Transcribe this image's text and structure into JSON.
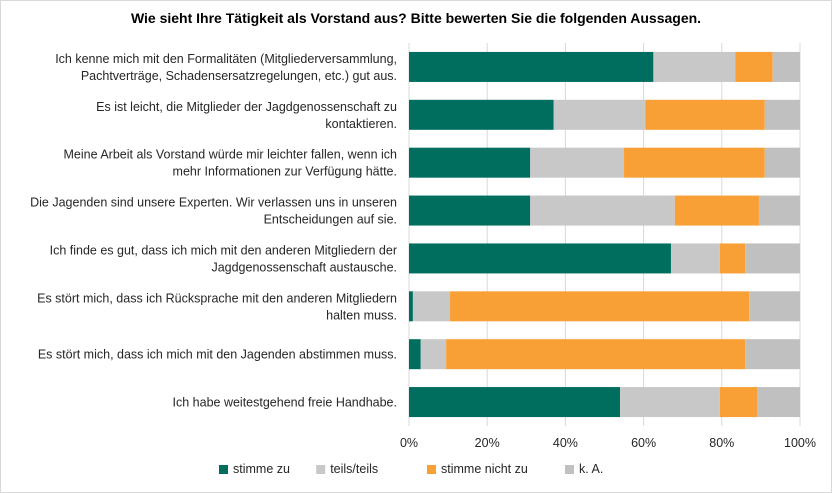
{
  "chart_data": {
    "type": "bar",
    "orientation": "horizontal",
    "stacked": "100%",
    "title": "Wie sieht Ihre Tätigkeit als Vorstand aus? Bitte bewerten Sie die folgenden Aussagen.",
    "categories": [
      [
        "Ich kenne mich mit den Formalitäten (Mitgliederversammlung,",
        "Pachtverträge, Schadensersatzregelungen, etc.) gut aus."
      ],
      [
        "Es ist leicht, die Mitglieder der Jagdgenossenschaft zu",
        "kontaktieren."
      ],
      [
        "Meine Arbeit als Vorstand würde mir leichter fallen, wenn ich",
        "mehr Informationen zur Verfügung hätte."
      ],
      [
        "Die Jagenden sind unsere Experten. Wir verlassen uns in unseren",
        "Entscheidungen auf sie."
      ],
      [
        "Ich finde es gut, dass ich mich mit den anderen Mitgliedern der",
        "Jagdgenossenschaft austausche."
      ],
      [
        "Es stört mich, dass ich Rücksprache mit den anderen Mitgliedern",
        "halten muss."
      ],
      [
        "Es stört mich, dass ich mich mit den Jagenden abstimmen muss."
      ],
      [
        "Ich habe weitestgehend freie Handhabe."
      ]
    ],
    "series": [
      {
        "name": "stimme zu",
        "color": "#006e5f",
        "values": [
          62.5,
          37,
          31,
          31,
          67,
          1,
          3,
          54
        ]
      },
      {
        "name": "teils/teils",
        "color": "#c8c8c8",
        "values": [
          21,
          23.5,
          24,
          37,
          12.5,
          9.5,
          6.5,
          25.5
        ]
      },
      {
        "name": "stimme nicht zu",
        "color": "#f8a035",
        "values": [
          9.5,
          30.5,
          36,
          21.5,
          6.5,
          76.5,
          76.5,
          9.5
        ]
      },
      {
        "name": "k. A.",
        "color": "#c0c0c0",
        "values": [
          7,
          9,
          9,
          10.5,
          14,
          13,
          14,
          11
        ]
      }
    ],
    "xlim": [
      0,
      100
    ],
    "x_ticks": [
      "0%",
      "20%",
      "40%",
      "60%",
      "80%",
      "100%"
    ],
    "grid": true,
    "legend_position": "bottom"
  }
}
